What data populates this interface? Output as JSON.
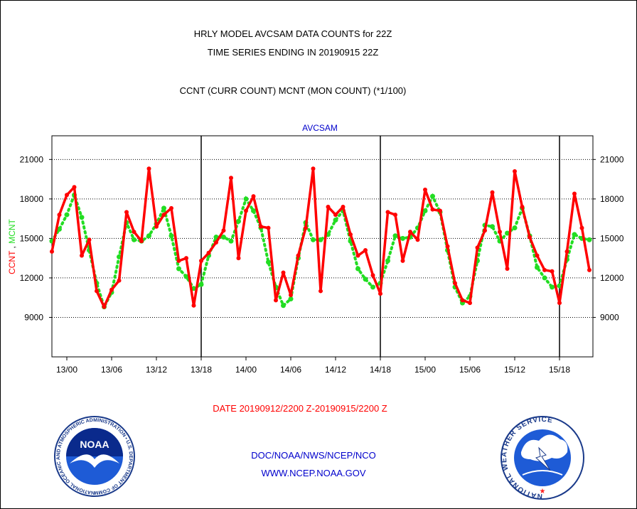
{
  "header": {
    "line1": "HRLY MODEL AVCSAM DATA COUNTS for 22Z",
    "line2": "TIME SERIES ENDING IN 20190915 22Z",
    "line3": "CCNT (CURR COUNT) MCNT (MON COUNT) (*1/100)"
  },
  "footer": {
    "date_range": "DATE 20190912/2200 Z-20190915/2200 Z",
    "org": "DOC/NOAA/NWS/NCEP/NCO",
    "url": "WWW.NCEP.NOAA.GOV"
  },
  "logos": {
    "left": "NOAA",
    "left_ring": "NATIONAL OCEANIC AND ATMOSPHERIC ADMINISTRATION • U.S. DEPARTMENT OF COMMERCE",
    "right_ring": "NATIONAL WEATHER SERVICE"
  },
  "colors": {
    "ccnt": "#ff0000",
    "mcnt": "#22dd22",
    "title": "#0000cc",
    "footer_date": "#ff0000",
    "footer_links": "#0000cc"
  },
  "chart_data": {
    "type": "line",
    "title": "AVCSAM",
    "ylabel_parts": [
      {
        "text": "CCNT",
        "color": "#ff0000"
      },
      {
        "text": " , ",
        "color": "#000000"
      },
      {
        "text": "MCNT",
        "color": "#22dd22"
      }
    ],
    "ylim": [
      6000,
      22800
    ],
    "yticks": [
      9000,
      12000,
      15000,
      18000,
      21000
    ],
    "xticks": [
      {
        "hour": 2,
        "label": "13/00"
      },
      {
        "hour": 8,
        "label": "13/06"
      },
      {
        "hour": 14,
        "label": "13/12"
      },
      {
        "hour": 20,
        "label": "13/18"
      },
      {
        "hour": 26,
        "label": "14/00"
      },
      {
        "hour": 32,
        "label": "14/06"
      },
      {
        "hour": 38,
        "label": "14/12"
      },
      {
        "hour": 44,
        "label": "14/18"
      },
      {
        "hour": 50,
        "label": "15/00"
      },
      {
        "hour": 56,
        "label": "15/06"
      },
      {
        "hour": 62,
        "label": "15/12"
      },
      {
        "hour": 68,
        "label": "15/18"
      }
    ],
    "x_start": "12/22",
    "x_end": "15/22",
    "day_boundaries": [
      20,
      44,
      68
    ],
    "grid": "horizontal dotted",
    "series": [
      {
        "name": "CCNT",
        "color": "#ff0000",
        "style": "solid",
        "values": [
          14000,
          16800,
          18300,
          18900,
          13700,
          14900,
          11000,
          9800,
          11100,
          11800,
          17000,
          15500,
          14800,
          20300,
          15900,
          16800,
          17300,
          13300,
          13500,
          9900,
          13300,
          13900,
          14700,
          15600,
          19600,
          13500,
          17100,
          18200,
          15900,
          15800,
          10300,
          12400,
          10700,
          13700,
          15800,
          20300,
          11000,
          17400,
          16800,
          17400,
          15300,
          13700,
          14100,
          12200,
          10800,
          17000,
          16800,
          13300,
          15500,
          14900,
          18700,
          17200,
          17100,
          14400,
          11600,
          10300,
          10100,
          14300,
          15600,
          18500,
          15500,
          12700,
          20100,
          17400,
          15100,
          13700,
          12600,
          12500,
          10100,
          14000,
          18400,
          15800,
          12600
        ]
      },
      {
        "name": "MCNT",
        "color": "#22dd22",
        "style": "dotted",
        "values": [
          14800,
          15700,
          16800,
          18300,
          16600,
          14100,
          11600,
          9800,
          10900,
          13600,
          16200,
          14900,
          14800,
          15200,
          16100,
          17300,
          15200,
          12700,
          12100,
          11200,
          11500,
          13700,
          15100,
          15100,
          14800,
          16300,
          18000,
          17100,
          15800,
          13200,
          11300,
          9900,
          10400,
          13500,
          16200,
          14900,
          14900,
          15300,
          16400,
          17100,
          14800,
          12700,
          11900,
          11300,
          11600,
          13300,
          15200,
          15000,
          15100,
          15800,
          17100,
          18200,
          17000,
          14100,
          11300,
          10100,
          10600,
          13300,
          16000,
          15900,
          14800,
          15400,
          15800,
          17300,
          15200,
          12800,
          12000,
          11300,
          11400,
          13400,
          15300,
          15000,
          14900
        ]
      }
    ]
  }
}
